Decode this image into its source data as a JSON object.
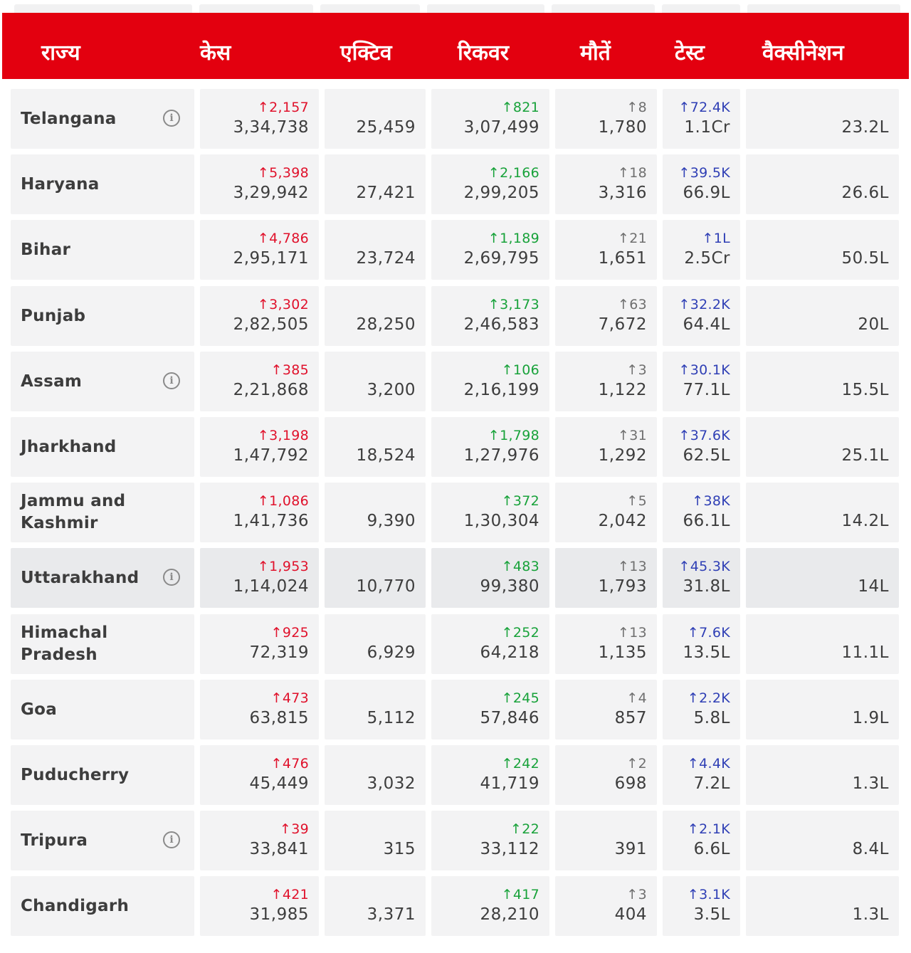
{
  "header": {
    "columns": [
      "राज्य",
      "केस",
      "एक्टिव",
      "रिकवर",
      "मौतें",
      "टेस्ट",
      "वैक्सीनेशन"
    ]
  },
  "rows": [
    {
      "state": "Telangana",
      "info": true,
      "cases_delta": "↑2,157",
      "cases": "3,34,738",
      "active": "25,459",
      "recovered_delta": "↑821",
      "recovered": "3,07,499",
      "deaths_delta": "↑8",
      "deaths": "1,780",
      "tests_delta": "↑72.4K",
      "tests": "1.1Cr",
      "vaccination": "23.2L"
    },
    {
      "state": "Haryana",
      "info": false,
      "cases_delta": "↑5,398",
      "cases": "3,29,942",
      "active": "27,421",
      "recovered_delta": "↑2,166",
      "recovered": "2,99,205",
      "deaths_delta": "↑18",
      "deaths": "3,316",
      "tests_delta": "↑39.5K",
      "tests": "66.9L",
      "vaccination": "26.6L"
    },
    {
      "state": "Bihar",
      "info": false,
      "cases_delta": "↑4,786",
      "cases": "2,95,171",
      "active": "23,724",
      "recovered_delta": "↑1,189",
      "recovered": "2,69,795",
      "deaths_delta": "↑21",
      "deaths": "1,651",
      "tests_delta": "↑1L",
      "tests": "2.5Cr",
      "vaccination": "50.5L"
    },
    {
      "state": "Punjab",
      "info": false,
      "cases_delta": "↑3,302",
      "cases": "2,82,505",
      "active": "28,250",
      "recovered_delta": "↑3,173",
      "recovered": "2,46,583",
      "deaths_delta": "↑63",
      "deaths": "7,672",
      "tests_delta": "↑32.2K",
      "tests": "64.4L",
      "vaccination": "20L"
    },
    {
      "state": "Assam",
      "info": true,
      "cases_delta": "↑385",
      "cases": "2,21,868",
      "active": "3,200",
      "recovered_delta": "↑106",
      "recovered": "2,16,199",
      "deaths_delta": "↑3",
      "deaths": "1,122",
      "tests_delta": "↑30.1K",
      "tests": "77.1L",
      "vaccination": "15.5L"
    },
    {
      "state": "Jharkhand",
      "info": false,
      "cases_delta": "↑3,198",
      "cases": "1,47,792",
      "active": "18,524",
      "recovered_delta": "↑1,798",
      "recovered": "1,27,976",
      "deaths_delta": "↑31",
      "deaths": "1,292",
      "tests_delta": "↑37.6K",
      "tests": "62.5L",
      "vaccination": "25.1L"
    },
    {
      "state": "Jammu and Kashmir",
      "info": false,
      "cases_delta": "↑1,086",
      "cases": "1,41,736",
      "active": "9,390",
      "recovered_delta": "↑372",
      "recovered": "1,30,304",
      "deaths_delta": "↑5",
      "deaths": "2,042",
      "tests_delta": "↑38K",
      "tests": "66.1L",
      "vaccination": "14.2L"
    },
    {
      "state": "Uttarakhand",
      "info": true,
      "cases_delta": "↑1,953",
      "cases": "1,14,024",
      "active": "10,770",
      "recovered_delta": "↑483",
      "recovered": "99,380",
      "deaths_delta": "↑13",
      "deaths": "1,793",
      "tests_delta": "↑45.3K",
      "tests": "31.8L",
      "vaccination": "14L"
    },
    {
      "state": "Himachal Pradesh",
      "info": false,
      "cases_delta": "↑925",
      "cases": "72,319",
      "active": "6,929",
      "recovered_delta": "↑252",
      "recovered": "64,218",
      "deaths_delta": "↑13",
      "deaths": "1,135",
      "tests_delta": "↑7.6K",
      "tests": "13.5L",
      "vaccination": "11.1L"
    },
    {
      "state": "Goa",
      "info": false,
      "cases_delta": "↑473",
      "cases": "63,815",
      "active": "5,112",
      "recovered_delta": "↑245",
      "recovered": "57,846",
      "deaths_delta": "↑4",
      "deaths": "857",
      "tests_delta": "↑2.2K",
      "tests": "5.8L",
      "vaccination": "1.9L"
    },
    {
      "state": "Puducherry",
      "info": false,
      "cases_delta": "↑476",
      "cases": "45,449",
      "active": "3,032",
      "recovered_delta": "↑242",
      "recovered": "41,719",
      "deaths_delta": "↑2",
      "deaths": "698",
      "tests_delta": "↑4.4K",
      "tests": "7.2L",
      "vaccination": "1.3L"
    },
    {
      "state": "Tripura",
      "info": true,
      "cases_delta": "↑39",
      "cases": "33,841",
      "active": "315",
      "recovered_delta": "↑22",
      "recovered": "33,112",
      "deaths_delta": "",
      "deaths": "391",
      "tests_delta": "↑2.1K",
      "tests": "6.6L",
      "vaccination": "8.4L"
    },
    {
      "state": "Chandigarh",
      "info": false,
      "cases_delta": "↑421",
      "cases": "31,985",
      "active": "3,371",
      "recovered_delta": "↑417",
      "recovered": "28,210",
      "deaths_delta": "↑3",
      "deaths": "404",
      "tests_delta": "↑3.1K",
      "tests": "3.5L",
      "vaccination": "1.3L"
    }
  ],
  "highlighted_row": "Uttarakhand",
  "colors": {
    "header_bg": "#e3000f",
    "cases_delta": "#e0112b",
    "recovered_delta": "#18a23a",
    "deaths_delta": "#6f6f6f",
    "tests_delta": "#2f3fb5"
  }
}
